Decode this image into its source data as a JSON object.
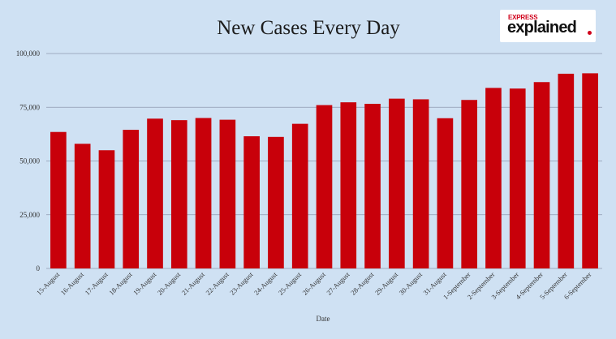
{
  "logo": {
    "line1": "EXPRESS",
    "line2": "explained"
  },
  "colors": {
    "bar": "#c8000a",
    "grid": "#8f9ab0",
    "background": "#cfe1f3"
  },
  "chart_data": {
    "type": "bar",
    "title": "New Cases Every Day",
    "xlabel": "Date",
    "ylabel": "",
    "ylim": [
      0,
      100000
    ],
    "yticks": [
      0,
      25000,
      50000,
      75000,
      100000
    ],
    "ytick_labels": [
      "0",
      "25,000",
      "50,000",
      "75,000",
      "100,000"
    ],
    "grid": true,
    "categories": [
      "15-August",
      "16-August",
      "17-August",
      "18-August",
      "19-August",
      "20-August",
      "21-August",
      "22-August",
      "23-August",
      "24-August",
      "25-August",
      "26-August",
      "27-August",
      "28-August",
      "29-August",
      "30-August",
      "31-August",
      "1-September",
      "2-September",
      "3-September",
      "4-September",
      "5-September",
      "6-September"
    ],
    "values": [
      63500,
      58000,
      55000,
      64500,
      69700,
      69000,
      70000,
      69200,
      61500,
      61200,
      67300,
      76000,
      77300,
      76600,
      79000,
      78700,
      69900,
      78400,
      84000,
      83700,
      86700,
      90600,
      90800
    ]
  }
}
